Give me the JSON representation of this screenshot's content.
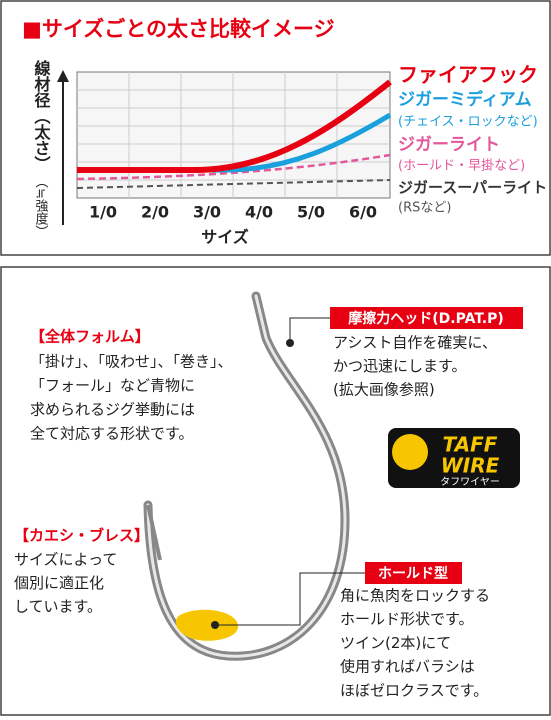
{
  "comparison": {
    "title": "■サイズごとの太さ比較イメージ",
    "y_axis_label": "線材径（太さ）",
    "y_axis_note": "（≒強度）",
    "x_axis_label": "サイズ",
    "categories": [
      "1/0",
      "2/0",
      "3/0",
      "4/0",
      "5/0",
      "6/0"
    ],
    "legend": [
      {
        "name": "ファイアフック"
      },
      {
        "name": "ジガーミディアム",
        "note": "(チェイス・ロックなど)"
      },
      {
        "name": "ジガーライト",
        "note": "(ホールド・早掛など)"
      },
      {
        "name": "ジガースーパーライト",
        "note": "(RSなど)"
      }
    ]
  },
  "diagram": {
    "form": {
      "title": "【全体フォルム】",
      "lines": [
        "「掛け」、「吸わせ」、「巻き」、",
        "「フォール」など青物に",
        "求められるジグ挙動には",
        "全て対応する形状です。"
      ]
    },
    "head": {
      "title": "摩擦力ヘッド(D.PAT.P)",
      "lines": [
        "アシスト自作を確実に、",
        "かつ迅速にします。",
        "(拡大画像参照)"
      ]
    },
    "logo": {
      "line1": "TAFF",
      "line2": "WIRE",
      "kana": "タフワイヤー"
    },
    "barb": {
      "title": "【カエシ・ブレス】",
      "lines": [
        "サイズによって",
        "個別に適正化",
        "しています。"
      ]
    },
    "hold": {
      "title": "ホールド型",
      "lines": [
        "角に魚肉をロックする",
        "ホールド形状です。",
        "ツイン(2本)にて",
        "使用すればバラシは",
        "ほぼゼロクラスです。"
      ]
    }
  }
}
